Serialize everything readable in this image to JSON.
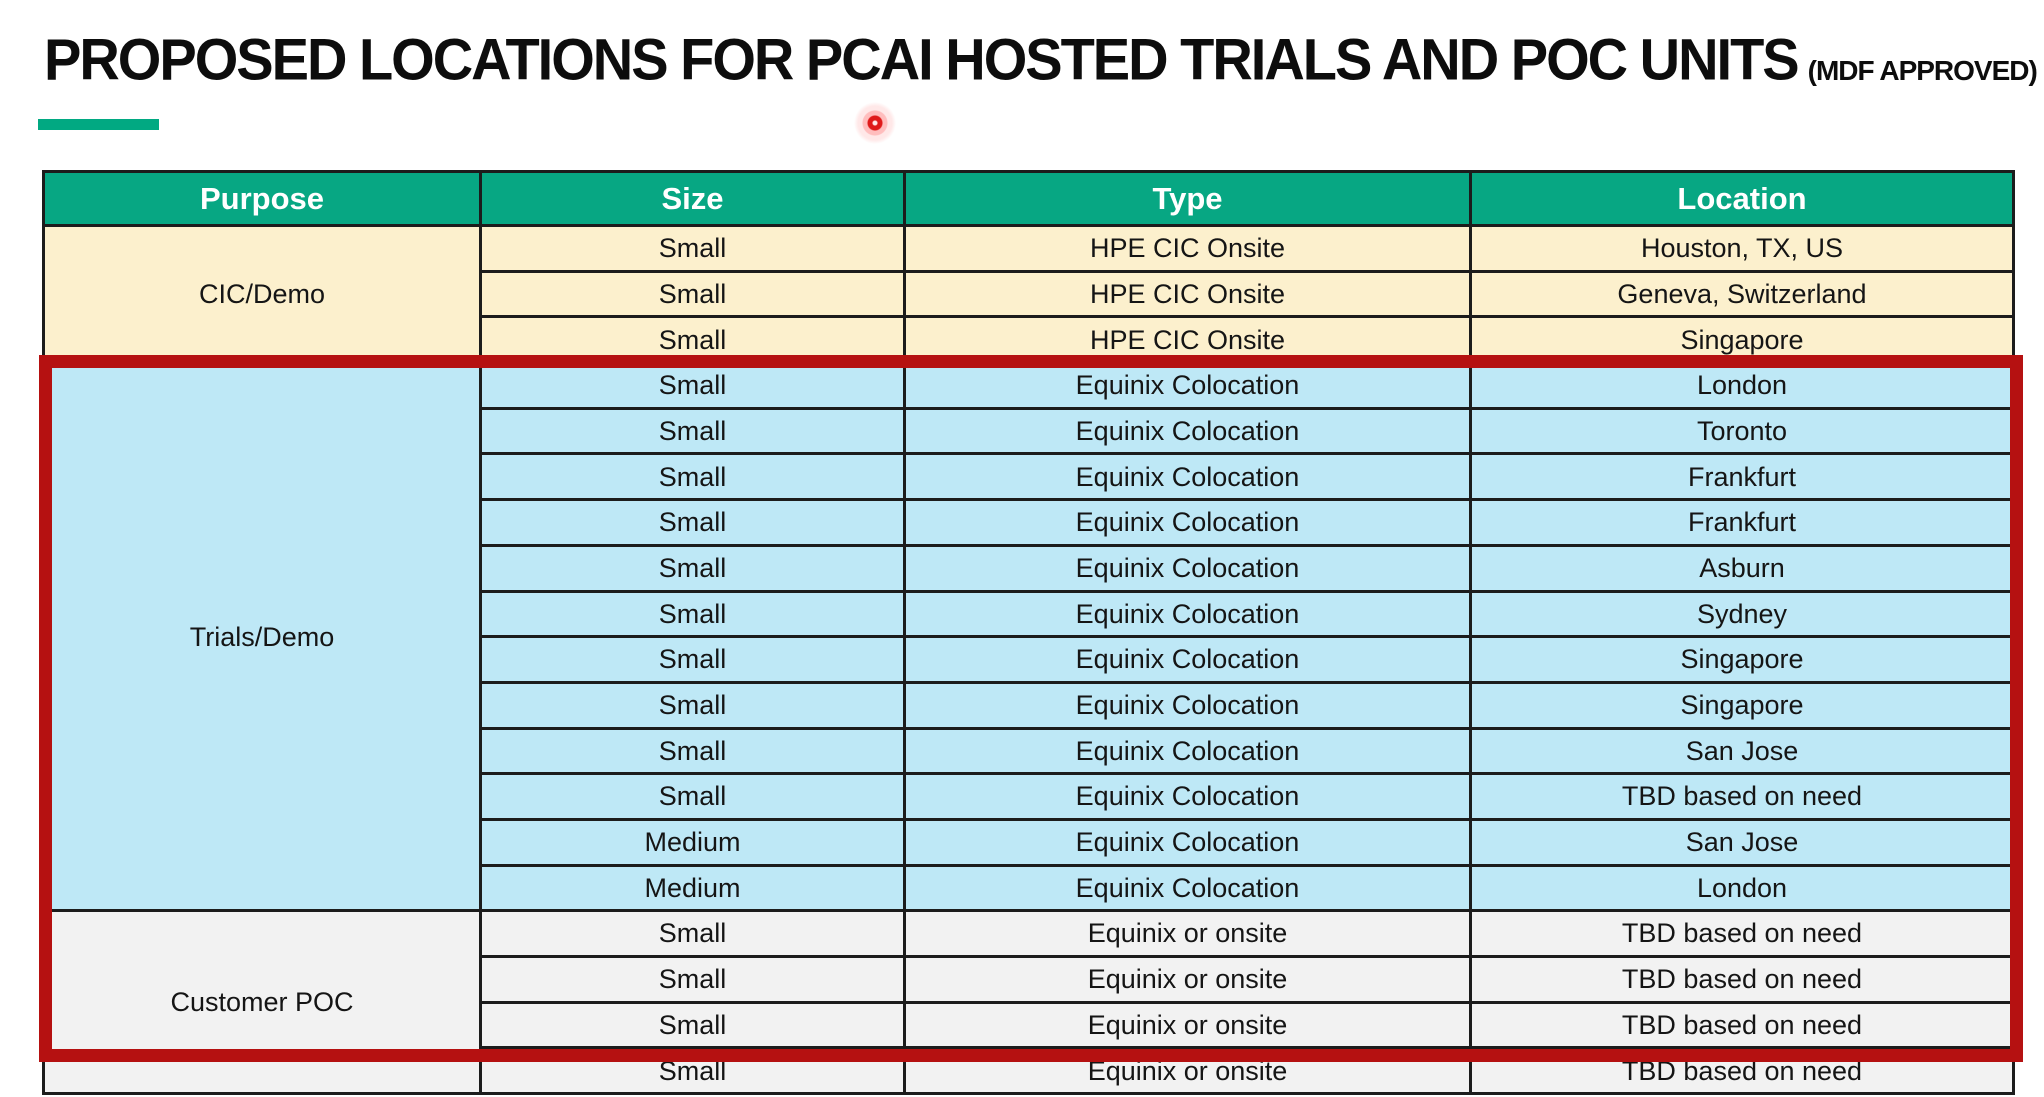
{
  "header": {
    "title": "PROPOSED LOCATIONS FOR PCAI HOSTED TRIALS AND POC UNITS",
    "suffix": "(MDF APPROVED)",
    "accent_color": "#01A982"
  },
  "pointer": {
    "type": "laser-dot",
    "color": "#DF1A1A"
  },
  "table": {
    "columns": [
      "Purpose",
      "Size",
      "Type",
      "Location"
    ],
    "header_bg": "#07A783",
    "header_text_color": "#FFFFFF",
    "border_color": "#1C1C1C",
    "highlight_border_color": "#B51111",
    "sections": [
      {
        "purpose": "CIC/Demo",
        "bg": "#FCF0CD",
        "highlighted": false,
        "rows": [
          [
            "Small",
            "HPE CIC Onsite",
            "Houston, TX, US"
          ],
          [
            "Small",
            "HPE CIC Onsite",
            "Geneva, Switzerland"
          ],
          [
            "Small",
            "HPE CIC Onsite",
            "Singapore"
          ]
        ]
      },
      {
        "purpose": "Trials/Demo",
        "bg": "#BEE8F6",
        "highlighted": true,
        "rows": [
          [
            "Small",
            "Equinix Colocation",
            "London"
          ],
          [
            "Small",
            "Equinix Colocation",
            "Toronto"
          ],
          [
            "Small",
            "Equinix Colocation",
            "Frankfurt"
          ],
          [
            "Small",
            "Equinix Colocation",
            "Frankfurt"
          ],
          [
            "Small",
            "Equinix Colocation",
            "Asburn"
          ],
          [
            "Small",
            "Equinix Colocation",
            "Sydney"
          ],
          [
            "Small",
            "Equinix Colocation",
            "Singapore"
          ],
          [
            "Small",
            "Equinix Colocation",
            "Singapore"
          ],
          [
            "Small",
            "Equinix Colocation",
            "San Jose"
          ],
          [
            "Small",
            "Equinix Colocation",
            "TBD based on need"
          ],
          [
            "Medium",
            "Equinix Colocation",
            "San Jose"
          ],
          [
            "Medium",
            "Equinix Colocation",
            "London"
          ]
        ]
      },
      {
        "purpose": "Customer POC",
        "bg": "#F2F2F2",
        "highlighted": true,
        "rows": [
          [
            "Small",
            "Equinix or onsite",
            "TBD based on need"
          ],
          [
            "Small",
            "Equinix or onsite",
            "TBD based on need"
          ],
          [
            "Small",
            "Equinix or onsite",
            "TBD based on need"
          ],
          [
            "Small",
            "Equinix or onsite",
            "TBD based on need"
          ]
        ]
      }
    ]
  }
}
